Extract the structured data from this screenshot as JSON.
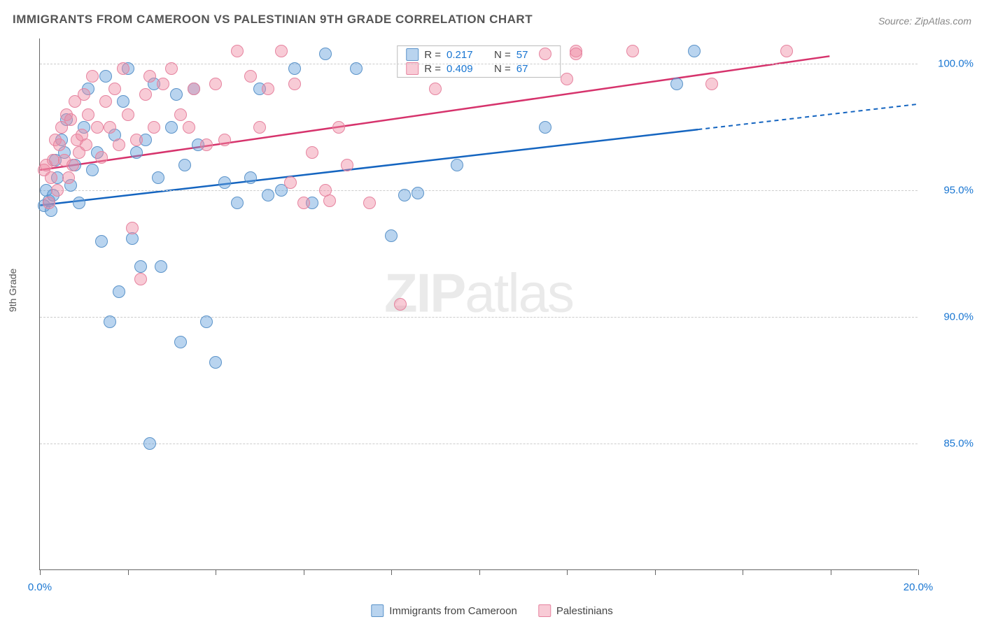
{
  "title": "IMMIGRANTS FROM CAMEROON VS PALESTINIAN 9TH GRADE CORRELATION CHART",
  "source": "Source: ZipAtlas.com",
  "ylabel": "9th Grade",
  "watermark_bold": "ZIP",
  "watermark_light": "atlas",
  "chart": {
    "type": "scatter",
    "xlim": [
      0,
      20
    ],
    "ylim": [
      80,
      101
    ],
    "xticks": [
      0,
      2,
      4,
      6,
      8,
      10,
      12,
      14,
      16,
      18,
      20
    ],
    "xtick_labels": {
      "0": "0.0%",
      "20": "20.0%"
    },
    "yticks": [
      85,
      90,
      95,
      100
    ],
    "ytick_labels": [
      "85.0%",
      "90.0%",
      "95.0%",
      "100.0%"
    ],
    "background_color": "#ffffff",
    "grid_color": "#cccccc",
    "series": [
      {
        "name": "Immigrants from Cameroon",
        "fill": "rgba(100,160,220,0.45)",
        "stroke": "#5b93c9",
        "trend_color": "#1565c0",
        "trend_dash_color": "#1565c0",
        "R": "0.217",
        "N": "57",
        "trend": {
          "x1": 0,
          "y1": 94.4,
          "x2_solid": 15,
          "y2_solid": 97.4,
          "x2": 20,
          "y2": 98.4
        },
        "points": [
          [
            0.1,
            94.4
          ],
          [
            0.2,
            94.6
          ],
          [
            0.15,
            95.0
          ],
          [
            0.3,
            94.8
          ],
          [
            0.25,
            94.2
          ],
          [
            0.4,
            95.5
          ],
          [
            0.35,
            96.2
          ],
          [
            0.5,
            97.0
          ],
          [
            0.6,
            97.8
          ],
          [
            0.55,
            96.5
          ],
          [
            0.7,
            95.2
          ],
          [
            0.8,
            96.0
          ],
          [
            0.9,
            94.5
          ],
          [
            1.0,
            97.5
          ],
          [
            1.1,
            99.0
          ],
          [
            1.2,
            95.8
          ],
          [
            1.3,
            96.5
          ],
          [
            1.4,
            93.0
          ],
          [
            1.5,
            99.5
          ],
          [
            1.6,
            89.8
          ],
          [
            1.7,
            97.2
          ],
          [
            1.8,
            91.0
          ],
          [
            1.9,
            98.5
          ],
          [
            2.0,
            99.8
          ],
          [
            2.1,
            93.1
          ],
          [
            2.2,
            96.5
          ],
          [
            2.3,
            92.0
          ],
          [
            2.4,
            97.0
          ],
          [
            2.5,
            85.0
          ],
          [
            2.6,
            99.2
          ],
          [
            2.7,
            95.5
          ],
          [
            2.75,
            92.0
          ],
          [
            3.0,
            97.5
          ],
          [
            3.1,
            98.8
          ],
          [
            3.2,
            89.0
          ],
          [
            3.3,
            96.0
          ],
          [
            3.5,
            99.0
          ],
          [
            3.6,
            96.8
          ],
          [
            3.8,
            89.8
          ],
          [
            4.0,
            88.2
          ],
          [
            4.2,
            95.3
          ],
          [
            4.5,
            94.5
          ],
          [
            4.8,
            95.5
          ],
          [
            5.0,
            99.0
          ],
          [
            5.2,
            94.8
          ],
          [
            5.5,
            95.0
          ],
          [
            5.8,
            99.8
          ],
          [
            6.2,
            94.5
          ],
          [
            6.5,
            100.4
          ],
          [
            7.2,
            99.8
          ],
          [
            8.0,
            93.2
          ],
          [
            8.3,
            94.8
          ],
          [
            8.6,
            94.9
          ],
          [
            9.5,
            96.0
          ],
          [
            11.5,
            97.5
          ],
          [
            14.5,
            99.2
          ],
          [
            14.9,
            100.5
          ]
        ]
      },
      {
        "name": "Palestinians",
        "fill": "rgba(240,140,165,0.45)",
        "stroke": "#e6839f",
        "trend_color": "#d6336c",
        "R": "0.409",
        "N": "67",
        "trend": {
          "x1": 0,
          "y1": 95.8,
          "x2_solid": 18,
          "y2_solid": 100.3,
          "x2": 18,
          "y2": 100.3
        },
        "points": [
          [
            0.1,
            95.8
          ],
          [
            0.15,
            96.0
          ],
          [
            0.2,
            94.5
          ],
          [
            0.25,
            95.5
          ],
          [
            0.3,
            96.2
          ],
          [
            0.35,
            97.0
          ],
          [
            0.4,
            95.0
          ],
          [
            0.45,
            96.8
          ],
          [
            0.5,
            97.5
          ],
          [
            0.55,
            96.2
          ],
          [
            0.6,
            98.0
          ],
          [
            0.65,
            95.5
          ],
          [
            0.7,
            97.8
          ],
          [
            0.75,
            96.0
          ],
          [
            0.8,
            98.5
          ],
          [
            0.85,
            97.0
          ],
          [
            0.9,
            96.5
          ],
          [
            0.95,
            97.2
          ],
          [
            1.0,
            98.8
          ],
          [
            1.05,
            96.8
          ],
          [
            1.1,
            98.0
          ],
          [
            1.2,
            99.5
          ],
          [
            1.3,
            97.5
          ],
          [
            1.4,
            96.3
          ],
          [
            1.5,
            98.5
          ],
          [
            1.6,
            97.5
          ],
          [
            1.7,
            99.0
          ],
          [
            1.8,
            96.8
          ],
          [
            1.9,
            99.8
          ],
          [
            2.0,
            98.0
          ],
          [
            2.1,
            93.5
          ],
          [
            2.2,
            97.0
          ],
          [
            2.3,
            91.5
          ],
          [
            2.4,
            98.8
          ],
          [
            2.5,
            99.5
          ],
          [
            2.6,
            97.5
          ],
          [
            2.8,
            99.2
          ],
          [
            3.0,
            99.8
          ],
          [
            3.2,
            98.0
          ],
          [
            3.4,
            97.5
          ],
          [
            3.5,
            99.0
          ],
          [
            3.8,
            96.8
          ],
          [
            4.0,
            99.2
          ],
          [
            4.2,
            97.0
          ],
          [
            4.5,
            100.5
          ],
          [
            4.8,
            99.5
          ],
          [
            5.0,
            97.5
          ],
          [
            5.2,
            99.0
          ],
          [
            5.5,
            100.5
          ],
          [
            5.7,
            95.3
          ],
          [
            5.8,
            99.2
          ],
          [
            6.0,
            94.5
          ],
          [
            6.2,
            96.5
          ],
          [
            6.5,
            95.0
          ],
          [
            6.6,
            94.6
          ],
          [
            6.8,
            97.5
          ],
          [
            7.0,
            96.0
          ],
          [
            7.5,
            94.5
          ],
          [
            8.2,
            90.5
          ],
          [
            9.0,
            99.0
          ],
          [
            11.5,
            100.4
          ],
          [
            12.0,
            99.4
          ],
          [
            12.2,
            100.5
          ],
          [
            13.5,
            100.5
          ],
          [
            15.3,
            99.2
          ],
          [
            17.0,
            100.5
          ],
          [
            12.2,
            100.4
          ]
        ]
      }
    ]
  },
  "legend_bottom": [
    {
      "label": "Immigrants from Cameroon",
      "fill": "rgba(100,160,220,0.45)",
      "stroke": "#5b93c9"
    },
    {
      "label": "Palestinians",
      "fill": "rgba(240,140,165,0.45)",
      "stroke": "#e6839f"
    }
  ]
}
